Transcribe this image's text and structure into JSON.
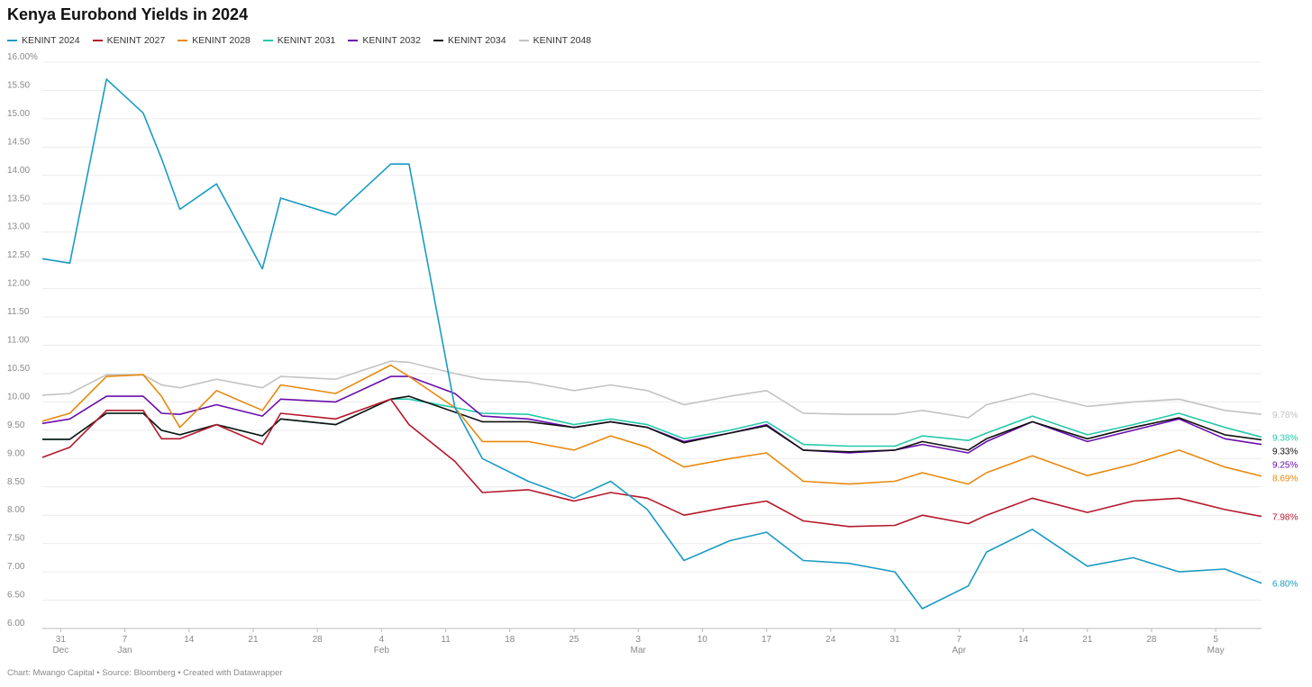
{
  "chart_data": {
    "type": "line",
    "title": "Kenya Eurobond Yields in 2024",
    "footer": "Chart: Mwango Capital • Source: Bloomberg • Created with Datawrapper",
    "ylim": [
      6.0,
      16.0
    ],
    "y_ticks": [
      "6.00",
      "6.50",
      "7.00",
      "7.50",
      "8.00",
      "8.50",
      "9.00",
      "9.50",
      "10.00",
      "10.50",
      "11.00",
      "11.50",
      "12.00",
      "12.50",
      "13.00",
      "13.50",
      "14.00",
      "14.50",
      "15.00",
      "15.50",
      "16.00%"
    ],
    "x_ticks": [
      {
        "day": "31",
        "month": "Dec",
        "date": "2023-12-31"
      },
      {
        "day": "7",
        "month": "Jan",
        "date": "2024-01-07"
      },
      {
        "day": "14",
        "month": "",
        "date": "2024-01-14"
      },
      {
        "day": "21",
        "month": "",
        "date": "2024-01-21"
      },
      {
        "day": "28",
        "month": "",
        "date": "2024-01-28"
      },
      {
        "day": "4",
        "month": "Feb",
        "date": "2024-02-04"
      },
      {
        "day": "11",
        "month": "",
        "date": "2024-02-11"
      },
      {
        "day": "18",
        "month": "",
        "date": "2024-02-18"
      },
      {
        "day": "25",
        "month": "",
        "date": "2024-02-25"
      },
      {
        "day": "3",
        "month": "Mar",
        "date": "2024-03-03"
      },
      {
        "day": "10",
        "month": "",
        "date": "2024-03-10"
      },
      {
        "day": "17",
        "month": "",
        "date": "2024-03-17"
      },
      {
        "day": "24",
        "month": "",
        "date": "2024-03-24"
      },
      {
        "day": "31",
        "month": "",
        "date": "2024-03-31"
      },
      {
        "day": "7",
        "month": "Apr",
        "date": "2024-04-07"
      },
      {
        "day": "14",
        "month": "",
        "date": "2024-04-14"
      },
      {
        "day": "21",
        "month": "",
        "date": "2024-04-21"
      },
      {
        "day": "28",
        "month": "",
        "date": "2024-04-28"
      },
      {
        "day": "5",
        "month": "May",
        "date": "2024-05-05"
      }
    ],
    "xlim": [
      "2023-12-29",
      "2024-05-10"
    ],
    "x": [
      "2023-12-29",
      "2024-01-01",
      "2024-01-05",
      "2024-01-09",
      "2024-01-11",
      "2024-01-13",
      "2024-01-17",
      "2024-01-22",
      "2024-01-24",
      "2024-01-30",
      "2024-02-05",
      "2024-02-07",
      "2024-02-12",
      "2024-02-15",
      "2024-02-20",
      "2024-02-25",
      "2024-02-29",
      "2024-03-04",
      "2024-03-08",
      "2024-03-13",
      "2024-03-17",
      "2024-03-21",
      "2024-03-26",
      "2024-03-31",
      "2024-04-03",
      "2024-04-08",
      "2024-04-10",
      "2024-04-15",
      "2024-04-21",
      "2024-04-26",
      "2024-05-01",
      "2024-05-06",
      "2024-05-10"
    ],
    "series": [
      {
        "name": "KENINT 2024",
        "color": "#1a9bc4",
        "end_label": "6.80%",
        "values": [
          12.53,
          12.45,
          15.7,
          15.1,
          14.3,
          13.4,
          13.85,
          12.35,
          13.6,
          13.3,
          14.2,
          14.2,
          9.9,
          9.0,
          8.6,
          8.3,
          8.6,
          8.1,
          7.2,
          7.55,
          7.7,
          7.2,
          7.15,
          7.0,
          6.35,
          6.75,
          7.35,
          7.75,
          7.1,
          7.25,
          7.0,
          7.05,
          6.8
        ]
      },
      {
        "name": "KENINT 2027",
        "color": "#b5172a",
        "end_label": "7.98%",
        "values": [
          9.02,
          9.2,
          9.85,
          9.85,
          9.35,
          9.35,
          9.6,
          9.25,
          9.8,
          9.7,
          10.05,
          9.6,
          8.95,
          8.4,
          8.45,
          8.25,
          8.4,
          8.3,
          8.0,
          8.15,
          8.25,
          7.9,
          7.8,
          7.82,
          8.0,
          7.85,
          8.0,
          8.3,
          8.05,
          8.25,
          8.3,
          8.1,
          7.98
        ]
      },
      {
        "name": "KENINT 2028",
        "color": "#e8890e",
        "end_label": "8.69%",
        "values": [
          9.66,
          9.8,
          10.45,
          10.48,
          10.1,
          9.55,
          10.2,
          9.85,
          10.3,
          10.15,
          10.65,
          10.45,
          9.9,
          9.3,
          9.3,
          9.15,
          9.4,
          9.2,
          8.85,
          9.0,
          9.1,
          8.6,
          8.55,
          8.6,
          8.75,
          8.55,
          8.75,
          9.05,
          8.7,
          8.9,
          9.15,
          8.85,
          8.69
        ]
      },
      {
        "name": "KENINT 2031",
        "color": "#25c9ab",
        "end_label": "9.38%",
        "values": [
          9.34,
          9.34,
          9.8,
          9.8,
          9.5,
          9.42,
          9.6,
          9.4,
          9.7,
          9.6,
          10.05,
          10.05,
          9.9,
          9.8,
          9.78,
          9.6,
          9.7,
          9.6,
          9.35,
          9.5,
          9.65,
          9.25,
          9.22,
          9.22,
          9.4,
          9.32,
          9.45,
          9.75,
          9.42,
          9.6,
          9.8,
          9.55,
          9.38
        ]
      },
      {
        "name": "KENINT 2032",
        "color": "#6a0dad",
        "end_label": "9.25%",
        "values": [
          9.62,
          9.7,
          10.1,
          10.1,
          9.8,
          9.78,
          9.95,
          9.75,
          10.05,
          10.0,
          10.45,
          10.45,
          10.15,
          9.75,
          9.7,
          9.55,
          9.65,
          9.55,
          9.3,
          9.45,
          9.6,
          9.15,
          9.1,
          9.15,
          9.25,
          9.1,
          9.3,
          9.65,
          9.3,
          9.5,
          9.7,
          9.35,
          9.25
        ]
      },
      {
        "name": "KENINT 2034",
        "color": "#111111",
        "end_label": "9.33%",
        "values": [
          9.34,
          9.34,
          9.8,
          9.8,
          9.5,
          9.42,
          9.6,
          9.4,
          9.7,
          9.6,
          10.05,
          10.1,
          9.82,
          9.65,
          9.65,
          9.55,
          9.65,
          9.55,
          9.28,
          9.45,
          9.58,
          9.15,
          9.12,
          9.15,
          9.3,
          9.15,
          9.35,
          9.65,
          9.35,
          9.55,
          9.72,
          9.42,
          9.33
        ]
      },
      {
        "name": "KENINT 2048",
        "color": "#c3c3c3",
        "end_label": "9.78%",
        "values": [
          10.12,
          10.15,
          10.48,
          10.48,
          10.3,
          10.25,
          10.4,
          10.25,
          10.45,
          10.4,
          10.72,
          10.7,
          10.5,
          10.4,
          10.35,
          10.2,
          10.3,
          10.2,
          9.95,
          10.1,
          10.2,
          9.8,
          9.78,
          9.78,
          9.85,
          9.72,
          9.95,
          10.15,
          9.92,
          10.0,
          10.05,
          9.85,
          9.78
        ]
      }
    ]
  }
}
